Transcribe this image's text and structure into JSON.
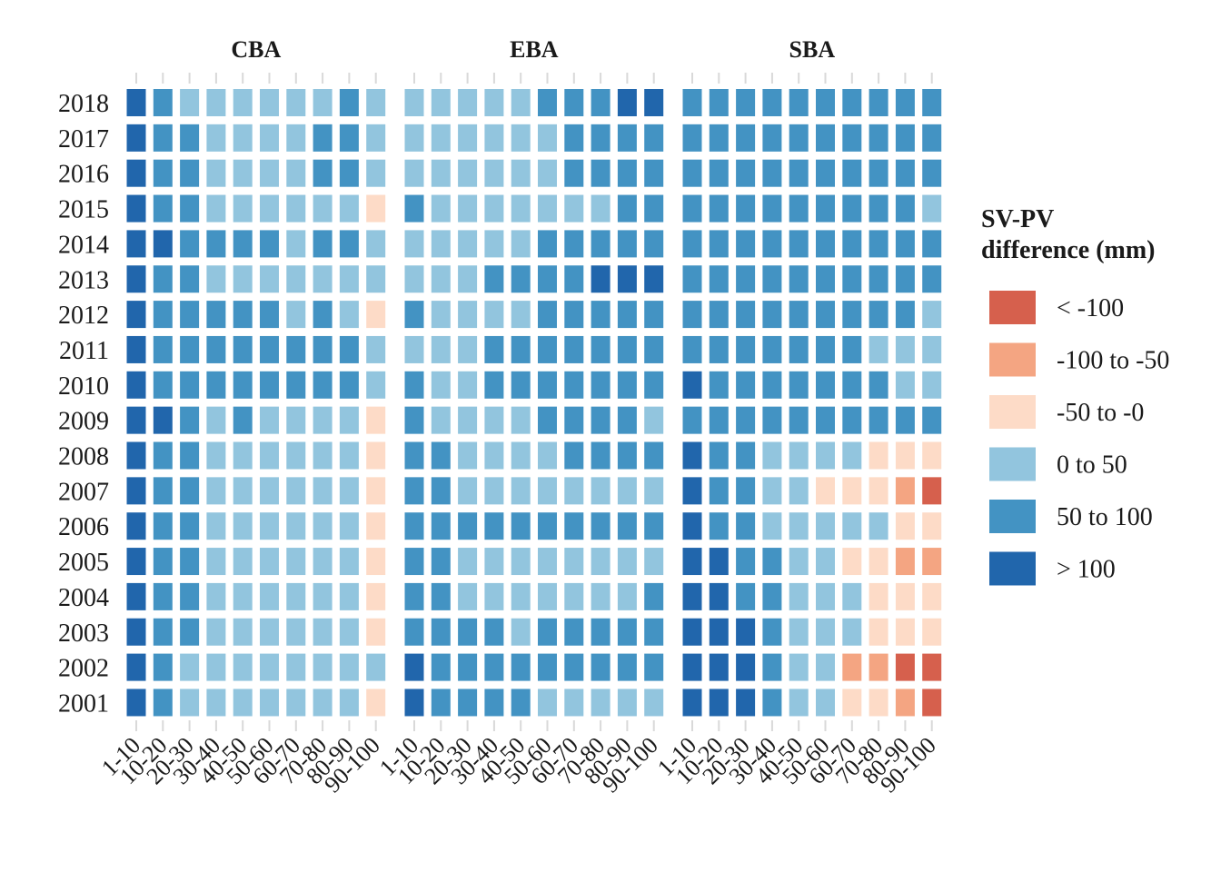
{
  "chart_data": {
    "type": "heatmap",
    "title": "",
    "xlabel": "",
    "ylabel": "",
    "facets": [
      "CBA",
      "EBA",
      "SBA"
    ],
    "x_categories": [
      "1-10",
      "10-20",
      "20-30",
      "30-40",
      "40-50",
      "50-60",
      "60-70",
      "70-80",
      "80-90",
      "90-100"
    ],
    "y_categories": [
      "2018",
      "2017",
      "2016",
      "2015",
      "2014",
      "2013",
      "2012",
      "2011",
      "2010",
      "2009",
      "2008",
      "2007",
      "2006",
      "2005",
      "2004",
      "2003",
      "2002",
      "2001"
    ],
    "legend": {
      "title_lines": [
        "SV-PV",
        "difference (mm)"
      ],
      "placement": "right",
      "classes": [
        {
          "label": "< -100",
          "color": "#d6604d"
        },
        {
          "label": "-100 to -50",
          "color": "#f4a582"
        },
        {
          "label": "-50 to -0",
          "color": "#fddbc7"
        },
        {
          "label": "0 to 50",
          "color": "#92c5de"
        },
        {
          "label": "50 to 100",
          "color": "#4393c3"
        },
        {
          "label": "> 100",
          "color": "#2166ac"
        }
      ]
    },
    "class_index_note_values": "cells hold index into legend.classes: 0='< -100',1='-100 to -50',2='-50 to -0',3='0 to 50',4='50 to 100',5='> 100'",
    "cells": {
      "CBA": [
        [
          5,
          4,
          3,
          3,
          3,
          3,
          3,
          3,
          4,
          3
        ],
        [
          5,
          4,
          4,
          3,
          3,
          3,
          3,
          4,
          4,
          3
        ],
        [
          5,
          4,
          4,
          3,
          3,
          3,
          3,
          4,
          4,
          3
        ],
        [
          5,
          4,
          4,
          3,
          3,
          3,
          3,
          3,
          3,
          2
        ],
        [
          5,
          5,
          4,
          4,
          4,
          4,
          3,
          4,
          4,
          3
        ],
        [
          5,
          4,
          4,
          3,
          3,
          3,
          3,
          3,
          3,
          3
        ],
        [
          5,
          4,
          4,
          4,
          4,
          4,
          3,
          4,
          3,
          2
        ],
        [
          5,
          4,
          4,
          4,
          4,
          4,
          4,
          4,
          4,
          3
        ],
        [
          5,
          4,
          4,
          4,
          4,
          4,
          4,
          4,
          4,
          3
        ],
        [
          5,
          5,
          4,
          3,
          4,
          3,
          3,
          3,
          3,
          2
        ],
        [
          5,
          4,
          4,
          3,
          3,
          3,
          3,
          3,
          3,
          2
        ],
        [
          5,
          4,
          4,
          3,
          3,
          3,
          3,
          3,
          3,
          2
        ],
        [
          5,
          4,
          4,
          3,
          3,
          3,
          3,
          3,
          3,
          2
        ],
        [
          5,
          4,
          4,
          3,
          3,
          3,
          3,
          3,
          3,
          2
        ],
        [
          5,
          4,
          4,
          3,
          3,
          3,
          3,
          3,
          3,
          2
        ],
        [
          5,
          4,
          4,
          3,
          3,
          3,
          3,
          3,
          3,
          2
        ],
        [
          5,
          4,
          3,
          3,
          3,
          3,
          3,
          3,
          3,
          3
        ],
        [
          5,
          4,
          3,
          3,
          3,
          3,
          3,
          3,
          3,
          2
        ]
      ],
      "EBA": [
        [
          3,
          3,
          3,
          3,
          3,
          4,
          4,
          4,
          5,
          5
        ],
        [
          3,
          3,
          3,
          3,
          3,
          3,
          4,
          4,
          4,
          4
        ],
        [
          3,
          3,
          3,
          3,
          3,
          3,
          4,
          4,
          4,
          4
        ],
        [
          4,
          3,
          3,
          3,
          3,
          3,
          3,
          3,
          4,
          4
        ],
        [
          3,
          3,
          3,
          3,
          3,
          4,
          4,
          4,
          4,
          4
        ],
        [
          3,
          3,
          3,
          4,
          4,
          4,
          4,
          5,
          5,
          5
        ],
        [
          4,
          3,
          3,
          3,
          3,
          4,
          4,
          4,
          4,
          4
        ],
        [
          3,
          3,
          3,
          4,
          4,
          4,
          4,
          4,
          4,
          4
        ],
        [
          4,
          3,
          3,
          4,
          4,
          4,
          4,
          4,
          4,
          4
        ],
        [
          4,
          3,
          3,
          3,
          3,
          4,
          4,
          4,
          4,
          3
        ],
        [
          4,
          4,
          3,
          3,
          3,
          3,
          4,
          4,
          4,
          4
        ],
        [
          4,
          4,
          3,
          3,
          3,
          3,
          3,
          3,
          3,
          3
        ],
        [
          4,
          4,
          4,
          4,
          4,
          4,
          4,
          4,
          4,
          4
        ],
        [
          4,
          4,
          3,
          3,
          3,
          3,
          3,
          3,
          3,
          3
        ],
        [
          4,
          4,
          3,
          3,
          3,
          3,
          3,
          3,
          3,
          4
        ],
        [
          4,
          4,
          4,
          4,
          3,
          4,
          4,
          4,
          4,
          4
        ],
        [
          5,
          4,
          4,
          4,
          4,
          4,
          4,
          4,
          4,
          4
        ],
        [
          5,
          4,
          4,
          4,
          4,
          3,
          3,
          3,
          3,
          3
        ]
      ],
      "SBA": [
        [
          4,
          4,
          4,
          4,
          4,
          4,
          4,
          4,
          4,
          4
        ],
        [
          4,
          4,
          4,
          4,
          4,
          4,
          4,
          4,
          4,
          4
        ],
        [
          4,
          4,
          4,
          4,
          4,
          4,
          4,
          4,
          4,
          4
        ],
        [
          4,
          4,
          4,
          4,
          4,
          4,
          4,
          4,
          4,
          3
        ],
        [
          4,
          4,
          4,
          4,
          4,
          4,
          4,
          4,
          4,
          4
        ],
        [
          4,
          4,
          4,
          4,
          4,
          4,
          4,
          4,
          4,
          4
        ],
        [
          4,
          4,
          4,
          4,
          4,
          4,
          4,
          4,
          4,
          3
        ],
        [
          4,
          4,
          4,
          4,
          4,
          4,
          4,
          3,
          3,
          3
        ],
        [
          5,
          4,
          4,
          4,
          4,
          4,
          4,
          4,
          3,
          3
        ],
        [
          4,
          4,
          4,
          4,
          4,
          4,
          4,
          4,
          4,
          4
        ],
        [
          5,
          4,
          4,
          3,
          3,
          3,
          3,
          2,
          2,
          2
        ],
        [
          5,
          4,
          4,
          3,
          3,
          2,
          2,
          2,
          1,
          0
        ],
        [
          5,
          4,
          4,
          3,
          3,
          3,
          3,
          3,
          2,
          2
        ],
        [
          5,
          5,
          4,
          4,
          3,
          3,
          2,
          2,
          1,
          1
        ],
        [
          5,
          5,
          4,
          4,
          3,
          3,
          3,
          2,
          2,
          2
        ],
        [
          5,
          5,
          5,
          4,
          3,
          3,
          3,
          2,
          2,
          2
        ],
        [
          5,
          5,
          5,
          4,
          3,
          3,
          1,
          1,
          0,
          0
        ],
        [
          5,
          5,
          5,
          4,
          3,
          3,
          2,
          2,
          1,
          0
        ]
      ]
    }
  }
}
